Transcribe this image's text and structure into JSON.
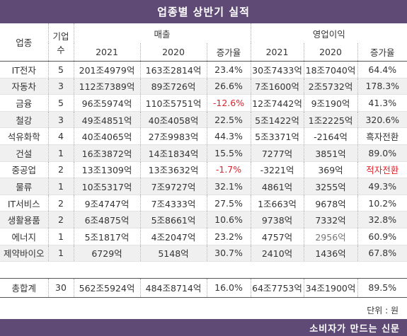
{
  "title": "업종별 상반기 실적",
  "headers": {
    "industry": "업종",
    "companies_1": "기업",
    "companies_2": "수",
    "sales": "매출",
    "op_profit": "영업이익",
    "y2021": "2021",
    "y2020": "2020",
    "growth": "증가율"
  },
  "rows": [
    {
      "industry": "IT전자",
      "count": "5",
      "sales2021": "201조4979억",
      "sales2020": "163조2814억",
      "sales_growth": "23.4%",
      "op2021": "30조7433억",
      "op2020": "18조7040억",
      "op_growth": "64.4%"
    },
    {
      "industry": "자동차",
      "count": "3",
      "sales2021": "112조7389억",
      "sales2020": "89조726억",
      "sales_growth": "26.6%",
      "op2021": "7조1600억",
      "op2020": "2조5732억",
      "op_growth": "178.3%"
    },
    {
      "industry": "금융",
      "count": "5",
      "sales2021": "96조5974억",
      "sales2020": "110조5751억",
      "sales_growth": "-12.6%",
      "op2021": "12조7442억",
      "op2020": "9조190억",
      "op_growth": "41.3%"
    },
    {
      "industry": "철강",
      "count": "3",
      "sales2021": "49조4851억",
      "sales2020": "40조4058억",
      "sales_growth": "22.5%",
      "op2021": "5조1422억",
      "op2020": "1조2225억",
      "op_growth": "320.6%"
    },
    {
      "industry": "석유화학",
      "count": "4",
      "sales2021": "40조4065억",
      "sales2020": "27조9983억",
      "sales_growth": "44.3%",
      "op2021": "5조3371억",
      "op2020": "-2164억",
      "op_growth": "흑자전환"
    },
    {
      "industry": "건설",
      "count": "1",
      "sales2021": "16조3872억",
      "sales2020": "14조1834억",
      "sales_growth": "15.5%",
      "op2021": "7277억",
      "op2020": "3851억",
      "op_growth": "89.0%"
    },
    {
      "industry": "중공업",
      "count": "2",
      "sales2021": "13조1309억",
      "sales2020": "13조3632억",
      "sales_growth": "-1.7%",
      "op2021": "-3221억",
      "op2020": "369억",
      "op_growth": "적자전환"
    },
    {
      "industry": "물류",
      "count": "1",
      "sales2021": "10조5317억",
      "sales2020": "7조9727억",
      "sales_growth": "32.1%",
      "op2021": "4861억",
      "op2020": "3255억",
      "op_growth": "49.3%"
    },
    {
      "industry": "IT서비스",
      "count": "2",
      "sales2021": "9조4747억",
      "sales2020": "7조4333억",
      "sales_growth": "27.5%",
      "op2021": "1조663억",
      "op2020": "9678억",
      "op_growth": "10.2%"
    },
    {
      "industry": "생활용품",
      "count": "2",
      "sales2021": "6조4875억",
      "sales2020": "5조8661억",
      "sales_growth": "10.6%",
      "op2021": "9738억",
      "op2020": "7332억",
      "op_growth": "32.8%"
    },
    {
      "industry": "에너지",
      "count": "1",
      "sales2021": "5조1817억",
      "sales2020": "4조2047억",
      "sales_growth": "23.2%",
      "op2021": "4757억",
      "op2020": "2956억",
      "op_growth": "60.9%"
    },
    {
      "industry": "제약바이오",
      "count": "1",
      "sales2021": "6729억",
      "sales2020": "5148억",
      "sales_growth": "30.7%",
      "op2021": "2410억",
      "op2020": "1436억",
      "op_growth": "67.8%"
    }
  ],
  "total": {
    "industry": "총합계",
    "count": "30",
    "sales2021": "562조5924억",
    "sales2020": "484조8714억",
    "sales_growth": "16.0%",
    "op2021": "64조7753억",
    "op2020": "34조1900억",
    "op_growth": "89.5%"
  },
  "unit": "단위 : 원",
  "footer": "소비자가 만드는 신문",
  "colors": {
    "header_bg": "#5f4a76",
    "negative": "#e0202a",
    "row_alt": "#f0f0f0"
  }
}
